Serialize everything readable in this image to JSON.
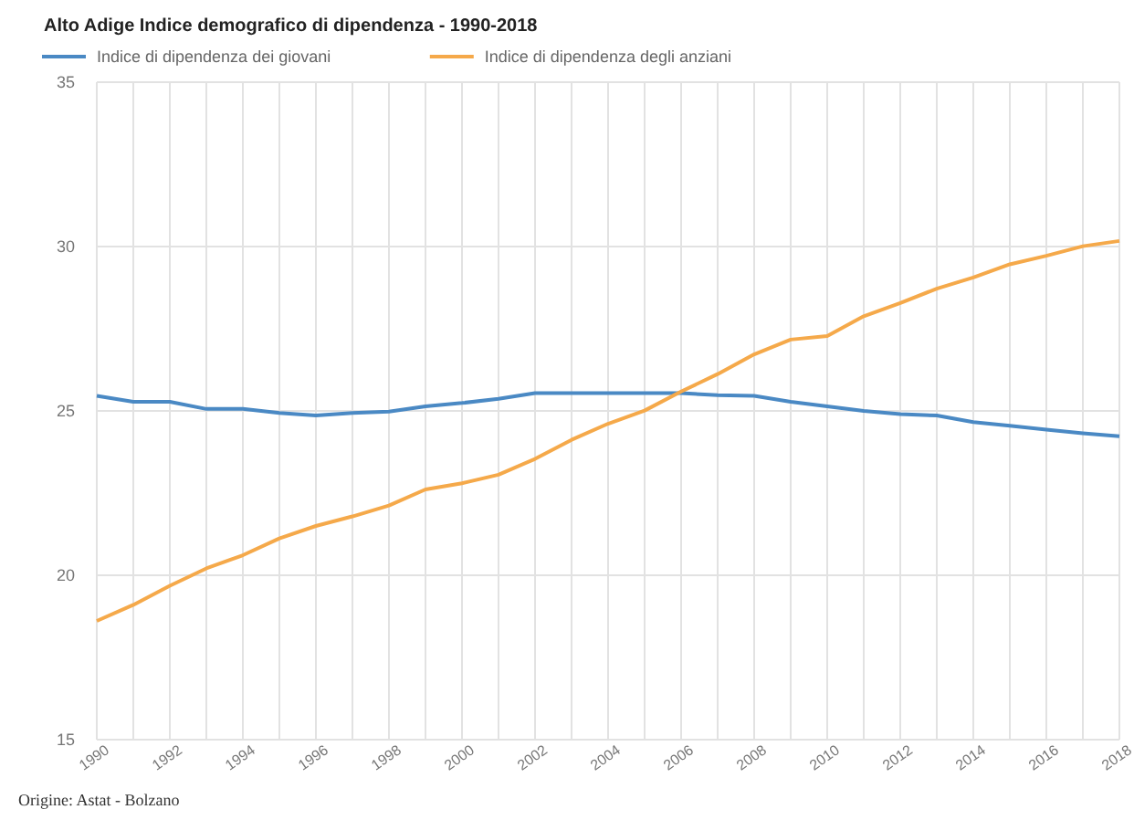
{
  "chart_data": {
    "type": "line",
    "title": "Alto Adige Indice demografico di dipendenza - 1990-2018",
    "annotations": [
      "Origine: Astat - Bolzano"
    ],
    "x": [
      1990,
      1991,
      1992,
      1993,
      1994,
      1995,
      1996,
      1997,
      1998,
      1999,
      2000,
      2001,
      2002,
      2003,
      2004,
      2005,
      2006,
      2007,
      2008,
      2009,
      2010,
      2011,
      2012,
      2013,
      2014,
      2015,
      2016,
      2017,
      2018
    ],
    "series": [
      {
        "name": "Indice di dipendenza dei giovani",
        "color": "#4a89c4",
        "values": [
          25.46,
          25.28,
          25.28,
          25.06,
          25.06,
          24.94,
          24.86,
          24.94,
          24.98,
          25.14,
          25.24,
          25.37,
          25.54,
          25.54,
          25.54,
          25.54,
          25.54,
          25.48,
          25.46,
          25.28,
          25.14,
          25.0,
          24.9,
          24.86,
          24.66,
          24.55,
          24.43,
          24.32,
          24.23
        ]
      },
      {
        "name": "Indice di dipendenza degli anziani",
        "color": "#f5a94a",
        "values": [
          18.61,
          19.1,
          19.68,
          20.21,
          20.61,
          21.12,
          21.5,
          21.79,
          22.12,
          22.61,
          22.8,
          23.06,
          23.54,
          24.12,
          24.61,
          25.01,
          25.59,
          26.12,
          26.72,
          27.17,
          27.28,
          27.88,
          28.28,
          28.72,
          29.06,
          29.46,
          29.72,
          30.01,
          30.17
        ]
      }
    ],
    "xlim": [
      1990,
      2018
    ],
    "xticks": [
      1990,
      {
        "value": 1991,
        "label": null
      },
      1992,
      {
        "value": 1993,
        "label": null
      },
      1994,
      {
        "value": 1995,
        "label": null
      },
      1996,
      {
        "value": 1997,
        "label": null
      },
      1998,
      {
        "value": 1999,
        "label": null
      },
      2000,
      {
        "value": 2001,
        "label": null
      },
      2002,
      {
        "value": 2003,
        "label": null
      },
      2004,
      {
        "value": 2005,
        "label": null
      },
      2006,
      {
        "value": 2007,
        "label": null
      },
      2008,
      {
        "value": 2009,
        "label": null
      },
      2010,
      {
        "value": 2011,
        "label": null
      },
      2012,
      {
        "value": 2013,
        "label": null
      },
      2014,
      {
        "value": 2015,
        "label": null
      },
      2016,
      {
        "value": 2017,
        "label": null
      },
      2018
    ],
    "ylim": [
      15,
      35
    ],
    "yticks": [
      15,
      20,
      25,
      30,
      35
    ],
    "grid": true,
    "legend": "top left",
    "marker": "none",
    "line_style": "solid"
  }
}
